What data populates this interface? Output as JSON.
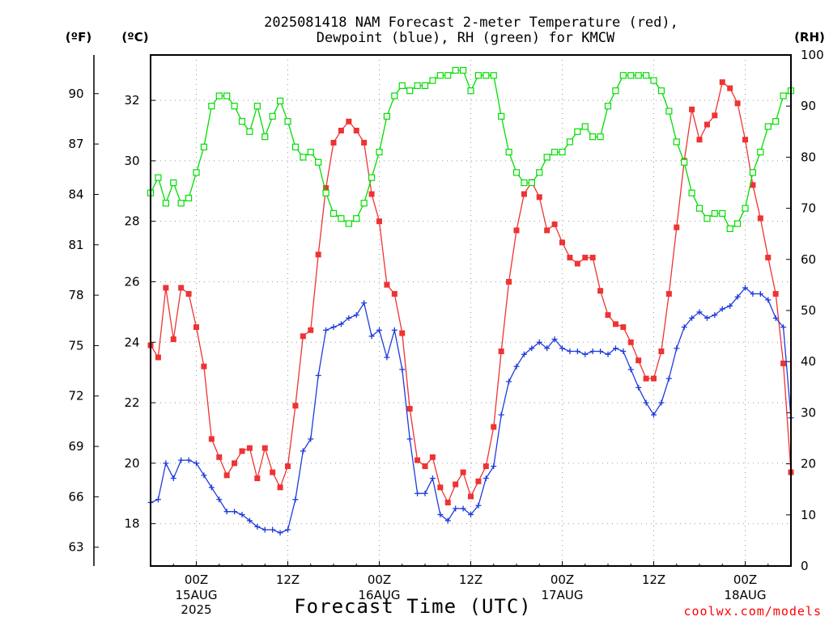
{
  "title": {
    "line1": "2025081418 NAM Forecast 2-meter Temperature (red),",
    "line2": "Dewpoint (blue), RH (green) for KMCW"
  },
  "units": {
    "fahrenheit": "(ºF)",
    "celsius": "(ºC)",
    "rh": "(RH)"
  },
  "credit": "coolwx.com/models",
  "colors": {
    "temperature": "#ee3333",
    "dewpoint": "#1e3cdc",
    "rh": "#00dd00",
    "grid": "#999999",
    "credit": "#ff0000"
  },
  "chart_data": {
    "type": "line",
    "title": "2025081418 NAM Forecast 2-meter Temperature (red), Dewpoint (blue), RH (green) for KMCW",
    "xlabel": "Forecast Time (UTC)",
    "x_unit": "hours from 2025-08-14 18Z (hourly forecast steps)",
    "x_range": [
      0,
      84
    ],
    "x_ticks": [
      {
        "hour": 6,
        "label": "00Z",
        "sub": [
          "15AUG",
          "2025"
        ]
      },
      {
        "hour": 18,
        "label": "12Z",
        "sub": []
      },
      {
        "hour": 30,
        "label": "00Z",
        "sub": [
          "16AUG"
        ]
      },
      {
        "hour": 42,
        "label": "12Z",
        "sub": []
      },
      {
        "hour": 54,
        "label": "00Z",
        "sub": [
          "17AUG"
        ]
      },
      {
        "hour": 66,
        "label": "12Z",
        "sub": []
      },
      {
        "hour": 78,
        "label": "00Z",
        "sub": [
          "18AUG"
        ]
      }
    ],
    "y_left_celsius": {
      "label": "(ºC)",
      "range": [
        16.6,
        33.5
      ],
      "ticks": [
        18,
        20,
        22,
        24,
        26,
        28,
        30,
        32
      ]
    },
    "y_left_fahrenheit": {
      "label": "(ºF)",
      "ticks": [
        63,
        66,
        69,
        72,
        75,
        78,
        81,
        84,
        87,
        90
      ]
    },
    "y_right_rh": {
      "label": "(RH)",
      "range": [
        0,
        100
      ],
      "ticks": [
        0,
        10,
        20,
        30,
        40,
        50,
        60,
        70,
        80,
        90,
        100
      ]
    },
    "grid": true,
    "series": [
      {
        "name": "Temperature",
        "axis": "celsius",
        "marker": "filled-square",
        "values": [
          23.9,
          23.5,
          25.8,
          24.1,
          25.8,
          25.6,
          24.5,
          23.2,
          20.8,
          20.2,
          19.6,
          20.0,
          20.4,
          20.5,
          19.5,
          20.5,
          19.7,
          19.2,
          19.9,
          21.9,
          24.2,
          24.4,
          26.9,
          29.1,
          30.6,
          31.0,
          31.3,
          31.0,
          30.6,
          28.9,
          28.0,
          25.9,
          25.6,
          24.3,
          21.8,
          20.1,
          19.9,
          20.2,
          19.2,
          18.7,
          19.3,
          19.7,
          18.9,
          19.4,
          19.9,
          21.2,
          23.7,
          26.0,
          27.7,
          28.9,
          29.3,
          28.8,
          27.7,
          27.9,
          27.3,
          26.8,
          26.6,
          26.8,
          26.8,
          25.7,
          24.9,
          24.6,
          24.5,
          24.0,
          23.4,
          22.8,
          22.8,
          23.7,
          25.6,
          27.8,
          30.0,
          31.7,
          30.7,
          31.2,
          31.5,
          32.6,
          32.4,
          31.9,
          30.7,
          29.2,
          28.1,
          26.8,
          25.6,
          23.3,
          19.7
        ]
      },
      {
        "name": "Dewpoint",
        "axis": "celsius",
        "marker": "plus",
        "values": [
          18.7,
          18.8,
          20.0,
          19.5,
          20.1,
          20.1,
          20.0,
          19.6,
          19.2,
          18.8,
          18.4,
          18.4,
          18.3,
          18.1,
          17.9,
          17.8,
          17.8,
          17.7,
          17.8,
          18.8,
          20.4,
          20.8,
          22.9,
          24.4,
          24.5,
          24.6,
          24.8,
          24.9,
          25.3,
          24.2,
          24.4,
          23.5,
          24.4,
          23.1,
          20.8,
          19.0,
          19.0,
          19.5,
          18.3,
          18.1,
          18.5,
          18.5,
          18.3,
          18.6,
          19.5,
          19.9,
          21.6,
          22.7,
          23.2,
          23.6,
          23.8,
          24.0,
          23.8,
          24.1,
          23.8,
          23.7,
          23.7,
          23.6,
          23.7,
          23.7,
          23.6,
          23.8,
          23.7,
          23.1,
          22.5,
          22.0,
          21.6,
          22.0,
          22.8,
          23.8,
          24.5,
          24.8,
          25.0,
          24.8,
          24.9,
          25.1,
          25.2,
          25.5,
          25.8,
          25.6,
          25.6,
          25.4,
          24.8,
          24.5,
          21.5
        ]
      },
      {
        "name": "RH",
        "axis": "rh",
        "marker": "open-square",
        "values": [
          73,
          76,
          71,
          75,
          71,
          72,
          77,
          82,
          90,
          92,
          92,
          90,
          87,
          85,
          90,
          84,
          88,
          91,
          87,
          82,
          80,
          81,
          79,
          73,
          69,
          68,
          67,
          68,
          71,
          76,
          81,
          88,
          92,
          94,
          93,
          94,
          94,
          95,
          96,
          96,
          97,
          97,
          93,
          96,
          96,
          96,
          88,
          81,
          77,
          75,
          75,
          77,
          80,
          81,
          81,
          83,
          85,
          86,
          84,
          84,
          90,
          93,
          96,
          96,
          96,
          96,
          95,
          93,
          89,
          83,
          79,
          73,
          70,
          68,
          69,
          69,
          66,
          67,
          70,
          77,
          81,
          86,
          87,
          92,
          93
        ]
      }
    ]
  }
}
